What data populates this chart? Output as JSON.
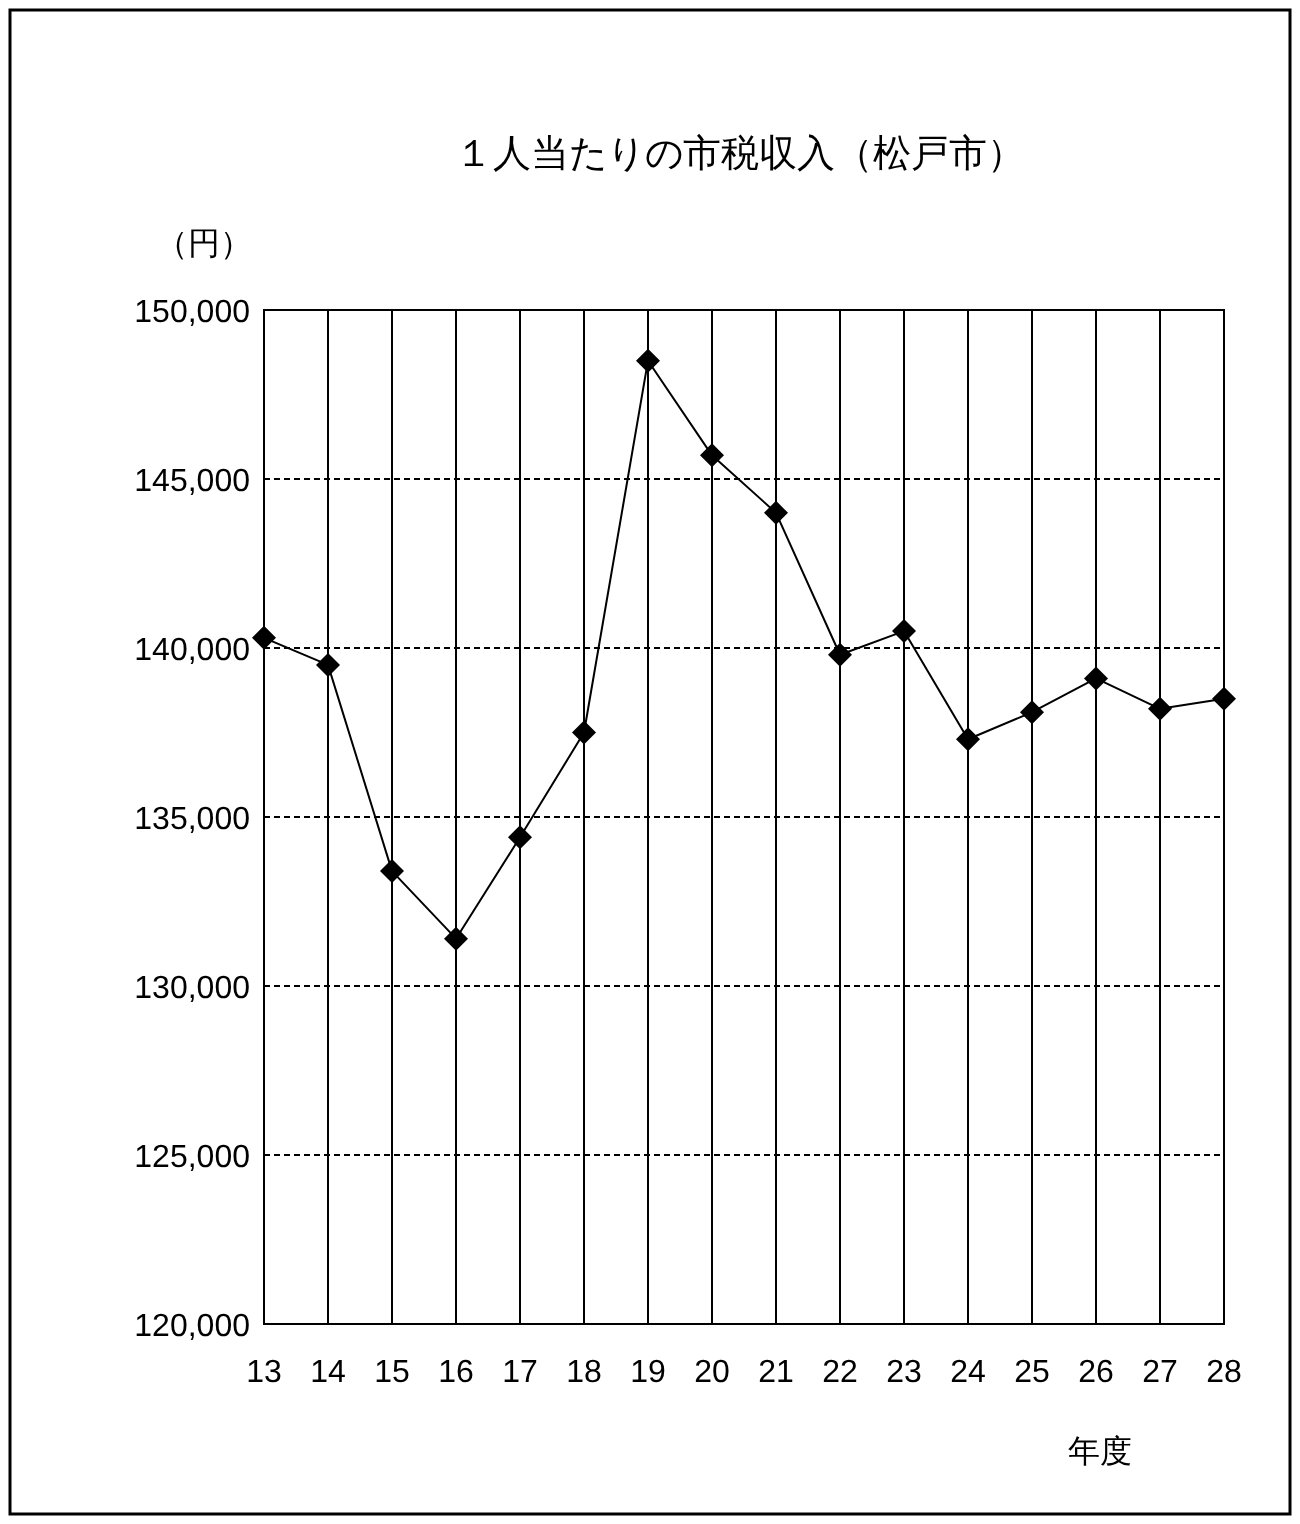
{
  "chart_data": {
    "type": "line",
    "title": "１人当たりの市税収入（松戸市）",
    "ylabel": "（円）",
    "xlabel": "年度",
    "categories": [
      "13",
      "14",
      "15",
      "16",
      "17",
      "18",
      "19",
      "20",
      "21",
      "22",
      "23",
      "24",
      "25",
      "26",
      "27",
      "28"
    ],
    "series": [
      {
        "color": "#000000",
        "values": [
          140300,
          139500,
          133400,
          131400,
          134400,
          137500,
          148500,
          145700,
          144000,
          139800,
          140500,
          137300,
          138100,
          139100,
          138200,
          138500
        ]
      }
    ],
    "ylim": [
      120000,
      150000
    ],
    "yticks": [
      {
        "value": 120000,
        "label": "120,000"
      },
      {
        "value": 125000,
        "label": "125,000"
      },
      {
        "value": 130000,
        "label": "130,000"
      },
      {
        "value": 135000,
        "label": "135,000"
      },
      {
        "value": 140000,
        "label": "140,000"
      },
      {
        "value": 145000,
        "label": "145,000"
      },
      {
        "value": 150000,
        "label": "150,000"
      }
    ],
    "grid": true,
    "marker": "diamond",
    "line_style": "solid"
  }
}
